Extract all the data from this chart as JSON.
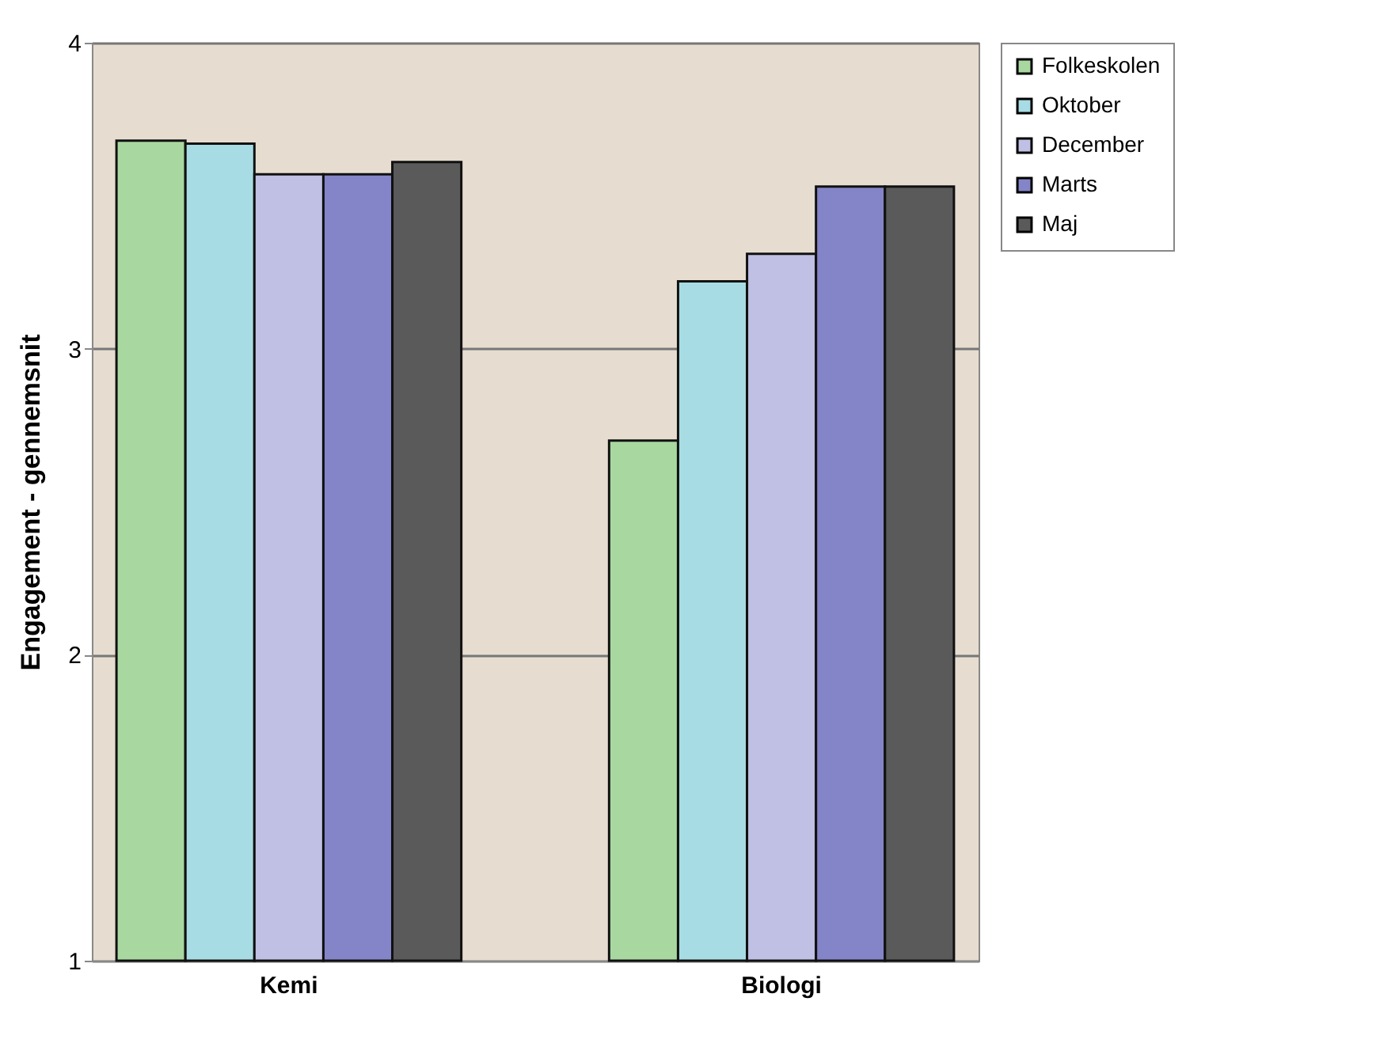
{
  "chart_data": {
    "type": "bar",
    "ylabel": "Engagement - gennemsnit",
    "categories": [
      "Kemi",
      "Biologi"
    ],
    "series": [
      {
        "name": "Folkeskolen",
        "color": "#a8d8a0",
        "values": [
          3.68,
          2.7
        ]
      },
      {
        "name": "Oktober",
        "color": "#a8dce4",
        "values": [
          3.67,
          3.22
        ]
      },
      {
        "name": "December",
        "color": "#c0c0e4",
        "values": [
          3.57,
          3.31
        ]
      },
      {
        "name": "Marts",
        "color": "#8484c8",
        "values": [
          3.57,
          3.53
        ]
      },
      {
        "name": "Maj",
        "color": "#5a5a5a",
        "values": [
          3.61,
          3.53
        ]
      }
    ],
    "ylim": [
      1,
      4
    ],
    "yticks": [
      1,
      2,
      3,
      4
    ],
    "grid": "y",
    "legend": "right"
  }
}
